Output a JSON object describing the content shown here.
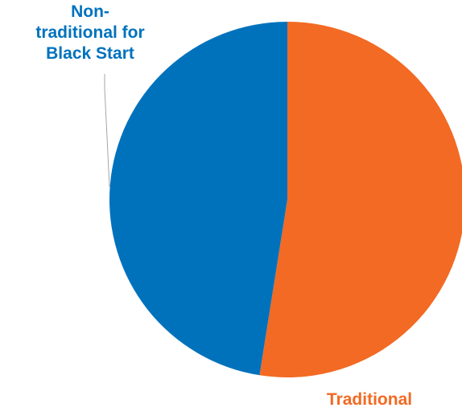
{
  "chart_data": {
    "type": "pie",
    "title": "",
    "slices": [
      {
        "label": "Traditional",
        "value": 52.5,
        "color": "#F26A23"
      },
      {
        "label": "Non-traditional for Black Start",
        "label_lines": [
          "Non-",
          "traditional for",
          "Black Start"
        ],
        "value": 47.5,
        "color": "#0072BC"
      }
    ],
    "legend": "none",
    "data_labels": "category-name",
    "leader_line_color": "#A6A6A6"
  }
}
